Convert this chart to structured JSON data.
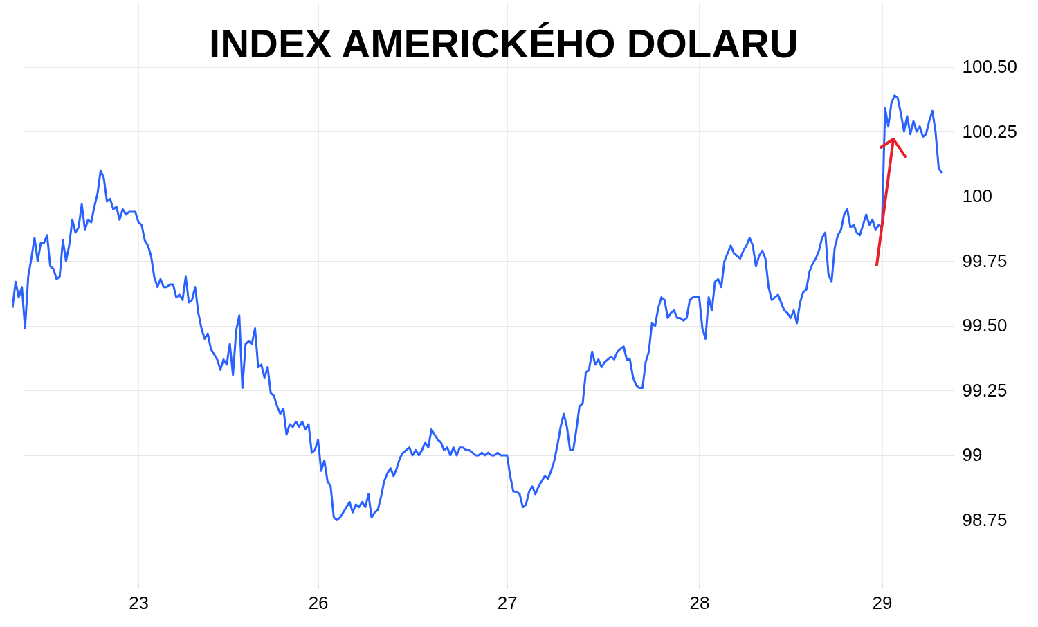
{
  "chart_data": {
    "type": "line",
    "title": "INDEX AMERICKÉHO DOLARU",
    "categories": [
      null,
      null,
      null,
      null,
      null,
      null,
      null,
      null,
      null,
      null,
      null,
      null,
      null,
      null,
      null,
      null,
      null,
      null,
      null,
      null,
      null,
      null,
      null,
      null,
      null,
      null,
      null,
      null,
      null,
      null,
      null,
      null,
      null,
      null,
      null,
      null,
      null,
      null,
      null,
      null,
      "23",
      null,
      null,
      null,
      null,
      null,
      null,
      null,
      null,
      null,
      null,
      null,
      null,
      null,
      null,
      null,
      null,
      null,
      null,
      null,
      null,
      null,
      null,
      null,
      null,
      null,
      null,
      null,
      null,
      null,
      null,
      null,
      null,
      null,
      null,
      null,
      null,
      null,
      null,
      null,
      null,
      null,
      null,
      null,
      null,
      null,
      null,
      null,
      null,
      null,
      null,
      null,
      null,
      null,
      null,
      null,
      null,
      "26",
      null,
      null,
      null,
      null,
      null,
      null,
      null,
      null,
      null,
      null,
      null,
      null,
      null,
      null,
      null,
      null,
      null,
      null,
      null,
      null,
      null,
      null,
      null,
      null,
      null,
      null,
      null,
      null,
      null,
      null,
      null,
      null,
      null,
      null,
      null,
      null,
      null,
      null,
      null,
      null,
      null,
      null,
      null,
      null,
      null,
      null,
      null,
      null,
      null,
      null,
      null,
      null,
      null,
      null,
      null,
      null,
      null,
      null,
      null,
      "27",
      null,
      null,
      null,
      null,
      null,
      null,
      null,
      null,
      null,
      null,
      null,
      null,
      null,
      null,
      null,
      null,
      null,
      null,
      null,
      null,
      null,
      null,
      null,
      null,
      null,
      null,
      null,
      null,
      null,
      null,
      null,
      null,
      null,
      null,
      null,
      null,
      null,
      null,
      null,
      null,
      null,
      null,
      null,
      null,
      null,
      null,
      null,
      null,
      null,
      null,
      null,
      null,
      null,
      null,
      null,
      null,
      null,
      null,
      null,
      null,
      "28",
      null,
      null,
      null,
      null,
      null,
      null,
      null,
      null,
      null,
      null,
      null,
      null,
      null,
      null,
      null,
      null,
      null,
      null,
      null,
      null,
      null,
      null,
      null,
      null,
      null,
      null,
      null,
      null,
      null,
      null,
      null,
      null,
      null,
      null,
      null,
      null,
      null,
      null,
      null,
      null,
      null,
      null,
      null,
      null,
      null,
      null,
      null,
      null,
      null,
      null,
      null,
      null,
      null,
      null,
      null,
      null,
      null,
      "29",
      null,
      null,
      null,
      null,
      null,
      null,
      null,
      null,
      null,
      null,
      null,
      null,
      null,
      null,
      null,
      null,
      null,
      null,
      null
    ],
    "series": [
      {
        "color": "#2962ff",
        "values": [
          99.57,
          99.67,
          99.61,
          99.65,
          99.49,
          99.69,
          99.76,
          99.84,
          99.75,
          99.82,
          99.82,
          99.85,
          99.73,
          99.72,
          99.68,
          99.69,
          99.83,
          99.75,
          99.81,
          99.91,
          99.86,
          99.88,
          99.97,
          99.87,
          99.91,
          99.9,
          99.96,
          100.01,
          100.1,
          100.07,
          99.98,
          99.99,
          99.95,
          99.96,
          99.91,
          99.95,
          99.93,
          99.94,
          99.94,
          99.94,
          99.9,
          99.89,
          99.83,
          99.81,
          99.77,
          99.69,
          99.65,
          99.68,
          99.65,
          99.65,
          99.66,
          99.66,
          99.61,
          99.62,
          99.6,
          99.69,
          99.59,
          99.6,
          99.65,
          99.55,
          99.49,
          99.45,
          99.47,
          99.41,
          99.39,
          99.37,
          99.33,
          99.37,
          99.35,
          99.43,
          99.31,
          99.48,
          99.54,
          99.26,
          99.43,
          99.44,
          99.43,
          99.49,
          99.34,
          99.35,
          99.3,
          99.34,
          99.24,
          99.23,
          99.19,
          99.16,
          99.18,
          99.08,
          99.12,
          99.11,
          99.13,
          99.11,
          99.13,
          99.1,
          99.12,
          99.01,
          99.02,
          99.06,
          98.94,
          98.98,
          98.9,
          98.88,
          98.76,
          98.75,
          98.76,
          98.78,
          98.8,
          98.82,
          98.78,
          98.81,
          98.8,
          98.82,
          98.8,
          98.85,
          98.76,
          98.78,
          98.79,
          98.84,
          98.9,
          98.93,
          98.95,
          98.92,
          98.95,
          98.99,
          99.01,
          99.02,
          99.03,
          99.0,
          99.02,
          99.0,
          99.02,
          99.05,
          99.03,
          99.1,
          99.08,
          99.06,
          99.05,
          99.02,
          99.03,
          99.0,
          99.03,
          99.0,
          99.03,
          99.03,
          99.02,
          99.02,
          99.01,
          99.0,
          99.0,
          99.01,
          99.0,
          99.01,
          99.0,
          99.0,
          99.01,
          99.0,
          99.0,
          99.0,
          98.92,
          98.86,
          98.86,
          98.85,
          98.8,
          98.81,
          98.86,
          98.88,
          98.85,
          98.88,
          98.9,
          98.92,
          98.91,
          98.94,
          98.98,
          99.04,
          99.11,
          99.16,
          99.11,
          99.02,
          99.02,
          99.1,
          99.19,
          99.2,
          99.32,
          99.33,
          99.4,
          99.35,
          99.37,
          99.34,
          99.36,
          99.37,
          99.38,
          99.37,
          99.4,
          99.41,
          99.42,
          99.37,
          99.37,
          99.3,
          99.27,
          99.26,
          99.26,
          99.36,
          99.4,
          99.51,
          99.5,
          99.57,
          99.61,
          99.6,
          99.53,
          99.55,
          99.56,
          99.53,
          99.53,
          99.52,
          99.53,
          99.6,
          99.61,
          99.61,
          99.61,
          99.49,
          99.45,
          99.61,
          99.56,
          99.67,
          99.68,
          99.65,
          99.75,
          99.78,
          99.81,
          99.78,
          99.77,
          99.76,
          99.79,
          99.81,
          99.84,
          99.81,
          99.73,
          99.77,
          99.79,
          99.76,
          99.65,
          99.6,
          99.61,
          99.62,
          99.59,
          99.56,
          99.55,
          99.53,
          99.56,
          99.51,
          99.59,
          99.63,
          99.64,
          99.71,
          99.74,
          99.76,
          99.79,
          99.84,
          99.86,
          99.7,
          99.67,
          99.8,
          99.85,
          99.87,
          99.93,
          99.95,
          99.88,
          99.89,
          99.86,
          99.85,
          99.89,
          99.93,
          99.89,
          99.91,
          99.87,
          99.89,
          99.88,
          100.34,
          100.27,
          100.36,
          100.39,
          100.38,
          100.32,
          100.25,
          100.31,
          100.24,
          100.29,
          100.25,
          100.27,
          100.23,
          100.24,
          100.29,
          100.33,
          100.25,
          100.11,
          100.09
        ]
      }
    ],
    "ylim": [
      98.5,
      100.75
    ],
    "yticks": [
      {
        "value": 100.5,
        "label": "100.50"
      },
      100.25,
      100,
      99.75,
      {
        "value": 99.5,
        "label": "99.50"
      },
      99.25,
      99,
      98.75
    ],
    "grid": true
  }
}
